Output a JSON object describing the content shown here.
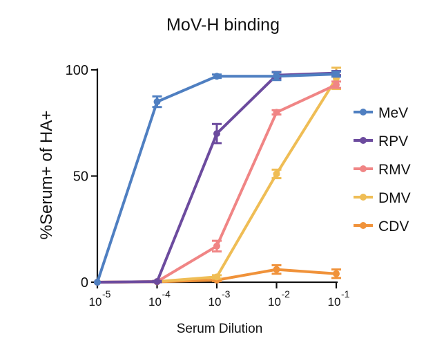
{
  "chart_data": {
    "type": "line",
    "title": "MoV-H binding",
    "xlabel": "Serum Dilution",
    "ylabel": "%Serum+ of HA+",
    "x_scale": "log",
    "x": [
      1e-05,
      0.0001,
      0.001,
      0.01,
      0.1
    ],
    "x_tick_labels": [
      {
        "base": "10",
        "exp": "-5"
      },
      {
        "base": "10",
        "exp": "-4"
      },
      {
        "base": "10",
        "exp": "-3"
      },
      {
        "base": "10",
        "exp": "-2"
      },
      {
        "base": "10",
        "exp": "-1"
      }
    ],
    "y_ticks": [
      0,
      50,
      100
    ],
    "y_tick_labels": [
      "0",
      "50",
      "100"
    ],
    "ylim": [
      0,
      100
    ],
    "legend_position": "right",
    "series": [
      {
        "name": "MeV",
        "color": "#4f7fc1",
        "values": [
          0,
          85,
          97,
          97,
          98
        ],
        "errors": [
          0,
          2.5,
          0.8,
          1.8,
          1.2
        ]
      },
      {
        "name": "RPV",
        "color": "#6c4b9e",
        "values": [
          0,
          0.3,
          70,
          97.5,
          98.5
        ],
        "errors": [
          0,
          0.3,
          4.5,
          1.5,
          1
        ]
      },
      {
        "name": "RMV",
        "color": "#f08585",
        "values": [
          0,
          0.3,
          17,
          80,
          93
        ],
        "errors": [
          0,
          0.3,
          2.5,
          1,
          1.5
        ]
      },
      {
        "name": "DMV",
        "color": "#efbd55",
        "values": [
          0,
          0.3,
          2.5,
          51,
          96
        ],
        "errors": [
          0,
          0.3,
          0.8,
          2,
          5
        ]
      },
      {
        "name": "CDV",
        "color": "#f0923a",
        "values": [
          0,
          0.2,
          1,
          6,
          4
        ],
        "errors": [
          0,
          0.2,
          0.5,
          2,
          2
        ]
      }
    ]
  }
}
